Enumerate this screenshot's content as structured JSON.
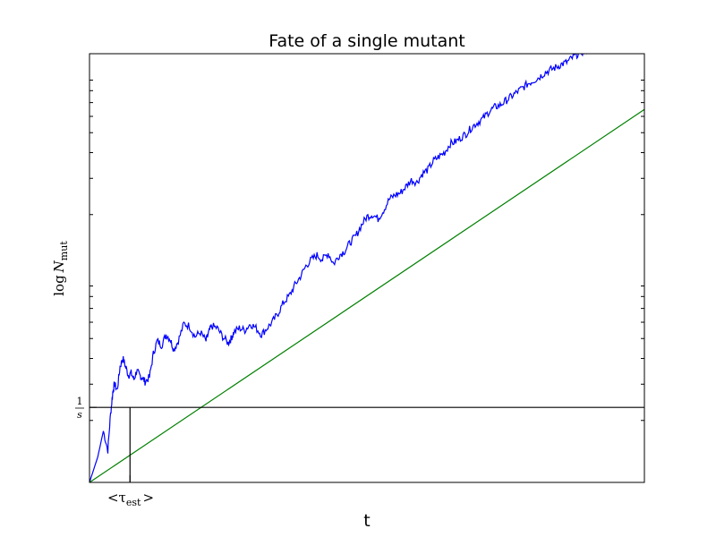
{
  "chart_data": {
    "type": "line",
    "title": "Fate of a single mutant",
    "xlabel": "t",
    "ylabel": "log N_mut",
    "ylabel_parts": {
      "base": "log",
      "var": "N",
      "sub": "mut"
    },
    "yscale": "log",
    "grid": false,
    "legend": "none",
    "xlim": [
      0,
      1000
    ],
    "ylim": [
      0,
      1000
    ],
    "y_tick_label": {
      "numerator": "1",
      "denominator": "s",
      "value": 175
    },
    "x_tick_label": {
      "text": "<τ",
      "sub": "est",
      "close": ">",
      "value": 73
    },
    "series": [
      {
        "color": "#0000ff",
        "style": "noisy",
        "x": [
          0,
          15,
          25,
          33,
          38,
          42,
          45,
          50,
          55,
          60,
          65,
          70,
          75,
          80,
          85,
          90,
          95,
          100,
          108,
          115,
          122,
          130,
          138,
          145,
          152,
          160,
          170,
          180,
          190,
          200,
          210,
          215,
          220,
          230,
          240,
          250,
          255,
          260,
          270,
          280,
          290,
          300,
          310,
          320,
          330,
          340,
          350,
          360,
          370,
          380,
          390,
          400,
          410,
          420,
          430,
          440,
          450,
          460,
          470,
          480,
          490,
          500,
          510,
          520,
          530,
          540,
          550,
          560,
          570,
          580,
          590,
          600,
          610,
          620,
          630,
          640,
          650,
          660,
          670,
          680,
          690,
          700,
          710,
          720,
          730,
          740,
          750,
          760,
          770,
          780,
          790,
          800,
          810,
          820,
          830,
          840,
          850,
          860,
          870,
          880,
          890,
          900,
          910,
          920,
          930,
          940,
          950,
          960,
          970,
          980,
          990,
          1000
        ],
        "y": [
          0,
          60,
          120,
          75,
          160,
          210,
          230,
          215,
          270,
          290,
          270,
          250,
          255,
          240,
          260,
          250,
          245,
          235,
          245,
          300,
          330,
          320,
          345,
          335,
          310,
          330,
          370,
          365,
          340,
          350,
          330,
          350,
          365,
          360,
          340,
          325,
          335,
          350,
          360,
          355,
          370,
          360,
          345,
          360,
          375,
          395,
          420,
          435,
          460,
          480,
          505,
          520,
          530,
          520,
          535,
          510,
          530,
          540,
          560,
          575,
          600,
          620,
          625,
          615,
          635,
          660,
          670,
          675,
          690,
          705,
          700,
          720,
          730,
          750,
          760,
          770,
          790,
          795,
          805,
          815,
          830,
          840,
          850,
          865,
          875,
          880,
          890,
          900,
          910,
          920,
          930,
          937,
          945,
          955,
          962,
          968,
          975,
          980,
          990,
          1000,
          1005,
          1010,
          1015,
          1020,
          1030,
          1040,
          1050,
          1065,
          1080,
          1095,
          1110,
          1125
        ]
      },
      {
        "color": "#008000",
        "style": "straight",
        "x": [
          0,
          1000
        ],
        "y": [
          0,
          870
        ]
      }
    ],
    "reference_lines": [
      {
        "orientation": "horizontal",
        "value": 175,
        "color": "#000000"
      },
      {
        "orientation": "vertical",
        "value": 73,
        "y_to": 175,
        "color": "#000000"
      }
    ]
  }
}
